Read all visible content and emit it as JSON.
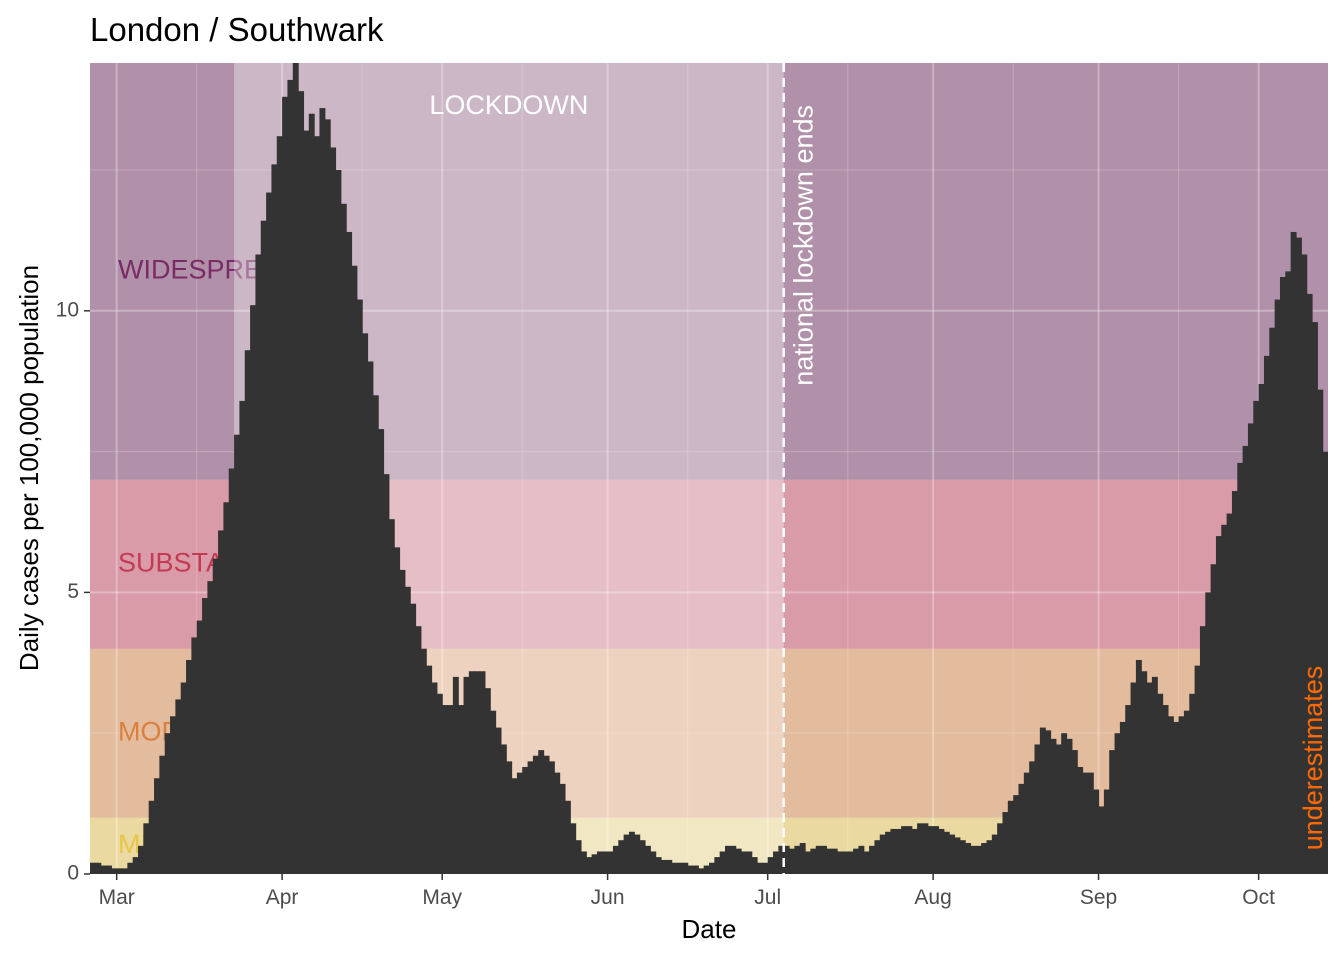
{
  "chart_data": {
    "type": "bar",
    "title": "London / Southwark",
    "xlabel": "Date",
    "ylabel": "Daily cases per 100,000 population",
    "x_range": [
      "2020-02-25",
      "2020-10-14"
    ],
    "ylim": [
      0,
      14.4
    ],
    "grid": true,
    "x_ticks": [
      {
        "date": "2020-03-01",
        "label": "Mar"
      },
      {
        "date": "2020-04-01",
        "label": "Apr"
      },
      {
        "date": "2020-05-01",
        "label": "May"
      },
      {
        "date": "2020-06-01",
        "label": "Jun"
      },
      {
        "date": "2020-07-01",
        "label": "Jul"
      },
      {
        "date": "2020-08-01",
        "label": "Aug"
      },
      {
        "date": "2020-09-01",
        "label": "Sep"
      },
      {
        "date": "2020-10-01",
        "label": "Oct"
      }
    ],
    "y_ticks": [
      0,
      5,
      10
    ],
    "bands": [
      {
        "label": "MINOR",
        "ymin": 0,
        "ymax": 1,
        "color": "#e8c547",
        "text_color": "#e8c547"
      },
      {
        "label": "MODERATE",
        "ymin": 1,
        "ymax": 4,
        "color": "#d9803e",
        "text_color": "#d9803e"
      },
      {
        "label": "SUBSTANTIAL",
        "ymin": 4,
        "ymax": 7,
        "color": "#c43a55",
        "text_color": "#c43a55"
      },
      {
        "label": "WIDESPREAD",
        "ymin": 7,
        "ymax": 14.4,
        "color": "#6b2458",
        "text_color": "#7a2a64"
      }
    ],
    "lockdown": {
      "label": "LOCKDOWN",
      "start": "2020-03-23",
      "end": "2020-07-04"
    },
    "vline": {
      "date": "2020-07-04",
      "label": "national lockdown ends"
    },
    "caveat": {
      "label": "underestimates",
      "color": "#ff6a00"
    },
    "series": [
      {
        "start_date": "2020-02-25",
        "values": [
          0.2,
          0.2,
          0.15,
          0.15,
          0.1,
          0.1,
          0.1,
          0.2,
          0.3,
          0.5,
          0.9,
          1.3,
          1.7,
          2.1,
          2.5,
          2.8,
          3.1,
          3.4,
          3.8,
          4.2,
          4.5,
          4.9,
          5.2,
          5.6,
          6.1,
          6.6,
          7.2,
          7.8,
          8.4,
          9.3,
          10.1,
          11.0,
          11.6,
          12.1,
          12.6,
          13.1,
          13.8,
          14.1,
          14.4,
          13.9,
          13.2,
          13.5,
          13.1,
          13.6,
          13.4,
          12.9,
          12.5,
          11.9,
          11.4,
          10.8,
          10.2,
          9.6,
          9.1,
          8.5,
          7.9,
          7.1,
          6.3,
          5.8,
          5.4,
          5.1,
          4.8,
          4.4,
          4.0,
          3.7,
          3.4,
          3.2,
          3.0,
          3.0,
          3.5,
          3.0,
          3.5,
          3.6,
          3.6,
          3.6,
          3.3,
          2.9,
          2.6,
          2.3,
          2.0,
          1.7,
          1.8,
          1.9,
          2.0,
          2.1,
          2.2,
          2.1,
          2.0,
          1.8,
          1.6,
          1.3,
          0.9,
          0.6,
          0.4,
          0.3,
          0.35,
          0.4,
          0.4,
          0.4,
          0.5,
          0.6,
          0.7,
          0.75,
          0.7,
          0.6,
          0.5,
          0.4,
          0.3,
          0.25,
          0.25,
          0.2,
          0.2,
          0.2,
          0.15,
          0.15,
          0.1,
          0.15,
          0.2,
          0.3,
          0.4,
          0.5,
          0.5,
          0.45,
          0.4,
          0.4,
          0.3,
          0.2,
          0.2,
          0.3,
          0.4,
          0.5,
          0.5,
          0.45,
          0.5,
          0.55,
          0.4,
          0.45,
          0.5,
          0.5,
          0.45,
          0.45,
          0.4,
          0.4,
          0.4,
          0.45,
          0.5,
          0.4,
          0.5,
          0.6,
          0.7,
          0.75,
          0.8,
          0.8,
          0.85,
          0.85,
          0.8,
          0.9,
          0.9,
          0.85,
          0.85,
          0.8,
          0.75,
          0.7,
          0.65,
          0.6,
          0.55,
          0.5,
          0.5,
          0.55,
          0.6,
          0.7,
          0.9,
          1.1,
          1.3,
          1.4,
          1.6,
          1.8,
          2.0,
          2.3,
          2.6,
          2.55,
          2.4,
          2.3,
          2.5,
          2.4,
          2.2,
          1.9,
          1.8,
          1.8,
          1.5,
          1.2,
          1.5,
          2.2,
          2.5,
          2.7,
          3.0,
          3.4,
          3.8,
          3.6,
          3.4,
          3.5,
          3.2,
          3.0,
          2.8,
          2.7,
          2.8,
          2.9,
          3.2,
          3.7,
          4.4,
          5.0,
          5.5,
          6.0,
          6.2,
          6.4,
          6.8,
          7.3,
          7.6,
          8.0,
          8.4,
          8.7,
          9.2,
          9.7,
          10.2,
          10.6,
          10.7,
          11.4,
          11.3,
          11.0,
          10.3,
          9.8,
          8.6,
          7.5,
          6.5,
          5.3,
          4.4
        ],
        "underestimate_from": "2020-10-10"
      }
    ]
  }
}
